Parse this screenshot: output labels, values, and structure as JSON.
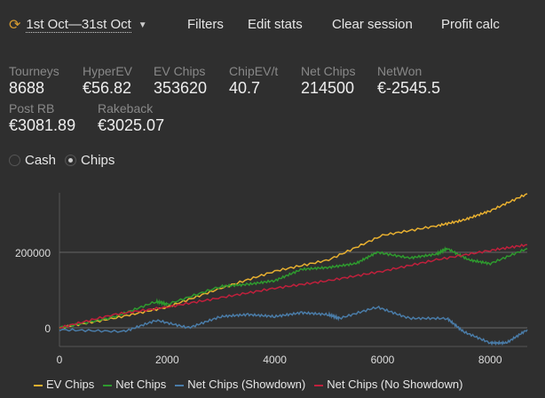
{
  "header": {
    "date_range": "1st Oct—31st Oct",
    "filters": "Filters",
    "edit_stats": "Edit stats",
    "clear_session": "Clear session",
    "profit_calc": "Profit calc"
  },
  "stats": [
    {
      "label": "Tourneys",
      "value": "8688"
    },
    {
      "label": "HyperEV",
      "value": "€56.82"
    },
    {
      "label": "EV Chips",
      "value": "353620"
    },
    {
      "label": "ChipEV/t",
      "value": "40.7"
    },
    {
      "label": "Net Chips",
      "value": "214500"
    },
    {
      "label": "NetWon",
      "value": "€-2545.5"
    },
    {
      "label": "Post RB",
      "value": "€3081.89"
    },
    {
      "label": "Rakeback",
      "value": "€3025.07"
    }
  ],
  "mode": {
    "cash": "Cash",
    "chips": "Chips",
    "selected": "Chips"
  },
  "chart_data": {
    "type": "line",
    "xlim": [
      0,
      8688
    ],
    "ylim": [
      -45000,
      357000
    ],
    "x_ticks": [
      "0",
      "2000",
      "4000",
      "6000",
      "8000"
    ],
    "y_ticks": [
      "0",
      "200000"
    ],
    "series": [
      {
        "name": "EV Chips",
        "color": "#e8b030",
        "points": [
          [
            0,
            0
          ],
          [
            1000,
            25000
          ],
          [
            2000,
            55000
          ],
          [
            3000,
            105000
          ],
          [
            4000,
            150000
          ],
          [
            5000,
            180000
          ],
          [
            6000,
            245000
          ],
          [
            7000,
            270000
          ],
          [
            7500,
            285000
          ],
          [
            8000,
            310000
          ],
          [
            8688,
            355000
          ]
        ]
      },
      {
        "name": "Net Chips",
        "color": "#2e9a2e",
        "points": [
          [
            0,
            0
          ],
          [
            1000,
            28000
          ],
          [
            1800,
            70000
          ],
          [
            2000,
            62000
          ],
          [
            3000,
            110000
          ],
          [
            3500,
            115000
          ],
          [
            4000,
            125000
          ],
          [
            4500,
            155000
          ],
          [
            5000,
            160000
          ],
          [
            5500,
            170000
          ],
          [
            5900,
            200000
          ],
          [
            6500,
            185000
          ],
          [
            7000,
            195000
          ],
          [
            7200,
            210000
          ],
          [
            7600,
            180000
          ],
          [
            8000,
            170000
          ],
          [
            8688,
            210000
          ]
        ]
      },
      {
        "name": "Net Chips (Showdown)",
        "color": "#4a7ca8",
        "points": [
          [
            0,
            -5000
          ],
          [
            1200,
            -10000
          ],
          [
            1800,
            20000
          ],
          [
            2400,
            0
          ],
          [
            3000,
            30000
          ],
          [
            3500,
            35000
          ],
          [
            4000,
            30000
          ],
          [
            4500,
            40000
          ],
          [
            5000,
            35000
          ],
          [
            5200,
            25000
          ],
          [
            5900,
            55000
          ],
          [
            6500,
            25000
          ],
          [
            7200,
            25000
          ],
          [
            7500,
            -10000
          ],
          [
            8000,
            -40000
          ],
          [
            8300,
            -40000
          ],
          [
            8688,
            -5000
          ]
        ]
      },
      {
        "name": "Net Chips (No Showdown)",
        "color": "#c0203c",
        "points": [
          [
            0,
            0
          ],
          [
            1000,
            35000
          ],
          [
            2000,
            55000
          ],
          [
            3000,
            80000
          ],
          [
            4000,
            105000
          ],
          [
            5000,
            125000
          ],
          [
            6000,
            150000
          ],
          [
            7000,
            180000
          ],
          [
            8000,
            205000
          ],
          [
            8688,
            220000
          ]
        ]
      }
    ]
  }
}
